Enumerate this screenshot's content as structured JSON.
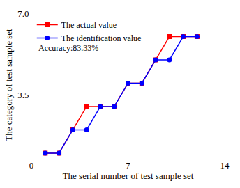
{
  "chart_data": {
    "type": "line",
    "x_label": "The serial number of test sample set",
    "y_label": "The category of test sample set",
    "x": [
      1,
      2,
      3,
      4,
      5,
      6,
      7,
      8,
      9,
      10,
      11,
      12
    ],
    "series": [
      {
        "name": "The actual value",
        "color": "#ff0000",
        "marker": "square",
        "values": [
          1,
          1,
          2,
          3,
          3,
          3,
          4,
          4,
          5,
          6,
          6,
          6
        ]
      },
      {
        "name": "The identification value",
        "color": "#0000ff",
        "marker": "circle",
        "values": [
          1,
          1,
          2,
          2,
          3,
          3,
          4,
          4,
          5,
          5,
          6,
          6
        ]
      }
    ],
    "annotations": [
      {
        "text": "Accuracy:83.33%"
      }
    ],
    "xlim": [
      0,
      14
    ],
    "xticks": [
      0,
      7,
      14
    ],
    "ylim": [
      0.85,
      7
    ],
    "yticks": [
      3.5,
      {
        "value": 7,
        "label": "7.0"
      }
    ],
    "legend": "upper left",
    "grid": false
  }
}
